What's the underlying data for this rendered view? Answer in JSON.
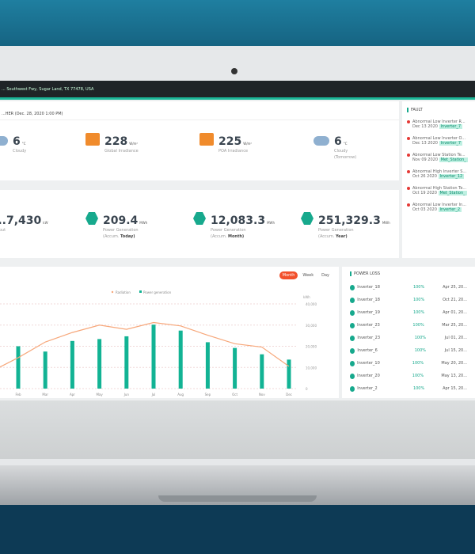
{
  "header": {
    "address": "... Southwest Fwy, Sugar Land, TX 77478, USA"
  },
  "weather": {
    "title": "...HER (Dec. 28, 2020 1:00 PM)",
    "items": [
      {
        "icon": "cloud-sun-icon",
        "value": "6",
        "unit": "°C",
        "label": "Cloudy",
        "label2": ""
      },
      {
        "icon": "solar-panel-icon",
        "value": "228",
        "unit": "W/m²",
        "label": "Global Irradiance",
        "label2": ""
      },
      {
        "icon": "solar-panel-icon",
        "value": "225",
        "unit": "W/m²",
        "label": "POA Irradiance",
        "label2": ""
      },
      {
        "icon": "cloud-icon",
        "value": "6",
        "unit": "°C",
        "label": "Cloudy",
        "label2": "(Tomorrow)"
      }
    ]
  },
  "power": {
    "items": [
      {
        "value": "...7,430",
        "unit": "kW",
        "label": "...tput",
        "accum_prefix": "",
        "accum": ""
      },
      {
        "value": "209.4",
        "unit": "MWh",
        "label": "Power Generation",
        "accum_prefix": "(Accum.",
        "accum": "Today)"
      },
      {
        "value": "12,083.3",
        "unit": "MWh",
        "label": "Power Generation",
        "accum_prefix": "(Accum.",
        "accum": "Month)"
      },
      {
        "value": "251,329.3",
        "unit": "MWh",
        "label": "Power Generation",
        "accum_prefix": "(Accum.",
        "accum": "Year)"
      }
    ]
  },
  "fault": {
    "title": "FAULT",
    "items": [
      {
        "text": "Abnormal Low Inverter R...",
        "date": "Dec 13 2020",
        "tag": "Inverter_7"
      },
      {
        "text": "Abnormal Low Inverter O...",
        "date": "Dec 13 2020",
        "tag": "Inverter_7"
      },
      {
        "text": "Abnormal Low Station Te...",
        "date": "Nov 09 2020",
        "tag": "Met_Station_"
      },
      {
        "text": "Abnormal High Inverter S...",
        "date": "Oct 26 2020",
        "tag": "Inverter_12"
      },
      {
        "text": "Abnormal High Station Te...",
        "date": "Oct 19 2020",
        "tag": "Met_Station_"
      },
      {
        "text": "Abnormal Low Inverter In...",
        "date": "Oct 03 2020",
        "tag": "Inverter_2"
      }
    ]
  },
  "chart_controls": {
    "month": "Month",
    "week": "Week",
    "day": "Day"
  },
  "chart_data": {
    "type": "bar",
    "legend": [
      "Radiation",
      "Power generation"
    ],
    "legend_position": "top-center",
    "ylabel": "kWh",
    "yticks": [
      "0",
      "10,000",
      "20,000",
      "30,000",
      "40,000"
    ],
    "ylim": [
      0,
      40000
    ],
    "grid": true,
    "categories": [
      "Feb",
      "Mar",
      "Apr",
      "May",
      "Jun",
      "Jul",
      "Aug",
      "Sep",
      "Oct",
      "Nov",
      "Dec"
    ],
    "series": [
      {
        "name": "Power generation",
        "type": "bar",
        "color": "#12b394",
        "values": [
          20000,
          17500,
          22500,
          23400,
          24700,
          30200,
          27400,
          21900,
          19200,
          16200,
          13700
        ]
      },
      {
        "name": "Radiation",
        "type": "line",
        "color": "#f7a77a",
        "values": [
          14600,
          22000,
          26500,
          30000,
          28000,
          31200,
          29600,
          25200,
          21200,
          19600,
          10500
        ]
      }
    ]
  },
  "power_loss": {
    "title": "POWER LOSS",
    "rows": [
      {
        "name": "Inverter_18",
        "pct": "100%",
        "date": "Apr 25, 20..."
      },
      {
        "name": "Inverter_18",
        "pct": "100%",
        "date": "Oct 21, 20..."
      },
      {
        "name": "Inverter_19",
        "pct": "100%",
        "date": "Apr 01, 20..."
      },
      {
        "name": "Inverter_23",
        "pct": "100%",
        "date": "Mar 25, 20..."
      },
      {
        "name": "Inverter_23",
        "pct": "100%",
        "date": "Jul 01, 20..."
      },
      {
        "name": "Inverter_6",
        "pct": "100%",
        "date": "Jul 15, 20..."
      },
      {
        "name": "Inverter_10",
        "pct": "100%",
        "date": "May 20, 20..."
      },
      {
        "name": "Inverter_20",
        "pct": "100%",
        "date": "May 13, 20..."
      },
      {
        "name": "Inverter_2",
        "pct": "100%",
        "date": "Apr 15, 20..."
      }
    ]
  }
}
